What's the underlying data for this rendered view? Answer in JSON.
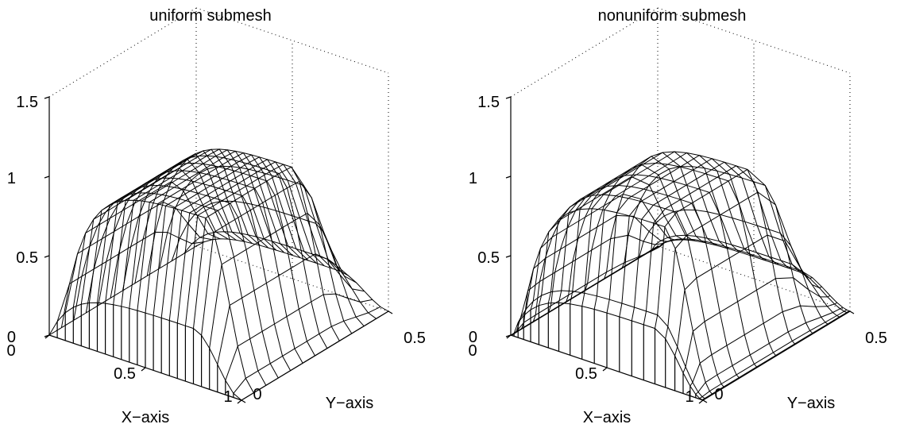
{
  "chart_data": [
    {
      "type": "surface",
      "title": "uniform submesh",
      "xlabel": "X−axis",
      "ylabel": "Y−axis",
      "zlabel": "",
      "xlim": [
        0,
        1
      ],
      "ylim": [
        0,
        0.5
      ],
      "zlim": [
        0,
        1.5
      ],
      "xticks": [
        "0",
        "0.5",
        "1"
      ],
      "yticks": [
        "0",
        "0.5"
      ],
      "zticks": [
        "0",
        "0.5",
        "1",
        "1.5"
      ],
      "mesh": "uniform",
      "grid_lines_x": 25,
      "grid_lines_y": 13,
      "surface_plateau_value": 1,
      "grid": true,
      "box_edges": "dotted"
    },
    {
      "type": "surface",
      "title": "nonuniform submesh",
      "xlabel": "X−axis",
      "ylabel": "Y−axis",
      "zlabel": "",
      "xlim": [
        0,
        1
      ],
      "ylim": [
        0,
        0.5
      ],
      "zlim": [
        0,
        1.5
      ],
      "xticks": [
        "0",
        "0.5",
        "1"
      ],
      "yticks": [
        "0",
        "0.5"
      ],
      "zticks": [
        "0",
        "0.5",
        "1",
        "1.5"
      ],
      "mesh": "nonuniform",
      "grid_lines_x": 25,
      "grid_lines_y": 13,
      "surface_plateau_value": 1,
      "grid": true,
      "box_edges": "dotted"
    }
  ]
}
